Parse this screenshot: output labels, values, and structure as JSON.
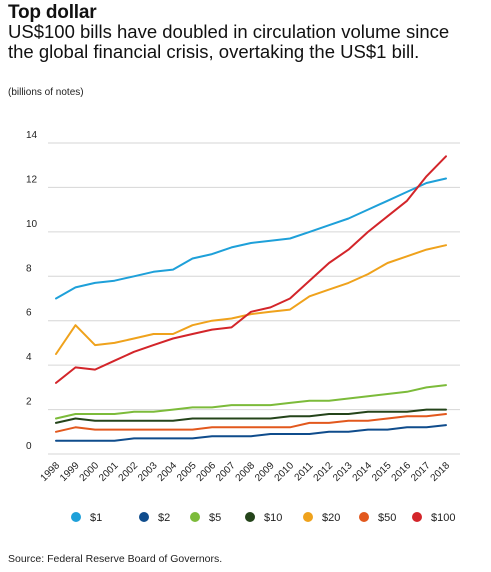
{
  "header": {
    "title": "Top dollar",
    "subtitle": "US$100 bills have doubled in circulation volume since the global financial crisis, overtaking the US$1 bill.",
    "unit": "(billions of notes)"
  },
  "source": "Source: Federal Reserve Board of Governors.",
  "chart_data": {
    "type": "line",
    "title": "Top dollar",
    "ylabel": "(billions of notes)",
    "xlabel": "",
    "ylim": [
      0,
      14
    ],
    "yticks": [
      0,
      2,
      4,
      6,
      8,
      10,
      12,
      14
    ],
    "grid": true,
    "legend_position": "bottom",
    "categories": [
      "1998",
      "1999",
      "2000",
      "2001",
      "2002",
      "2003",
      "2004",
      "2005",
      "2006",
      "2007",
      "2008",
      "2009",
      "2010",
      "2011",
      "2012",
      "2013",
      "2014",
      "2015",
      "2016",
      "2017",
      "2018"
    ],
    "series": [
      {
        "name": "$1",
        "color": "#1ea0d9",
        "values": [
          7.0,
          7.5,
          7.7,
          7.8,
          8.0,
          8.2,
          8.3,
          8.8,
          9.0,
          9.3,
          9.5,
          9.6,
          9.7,
          10.0,
          10.3,
          10.6,
          11.0,
          11.4,
          11.8,
          12.2,
          12.4
        ]
      },
      {
        "name": "$2",
        "color": "#0f4c8c",
        "values": [
          0.6,
          0.6,
          0.6,
          0.6,
          0.7,
          0.7,
          0.7,
          0.7,
          0.8,
          0.8,
          0.8,
          0.9,
          0.9,
          0.9,
          1.0,
          1.0,
          1.1,
          1.1,
          1.2,
          1.2,
          1.3
        ]
      },
      {
        "name": "$5",
        "color": "#7cbb3a",
        "values": [
          1.6,
          1.8,
          1.8,
          1.8,
          1.9,
          1.9,
          2.0,
          2.1,
          2.1,
          2.2,
          2.2,
          2.2,
          2.3,
          2.4,
          2.4,
          2.5,
          2.6,
          2.7,
          2.8,
          3.0,
          3.1
        ]
      },
      {
        "name": "$10",
        "color": "#24441a",
        "values": [
          1.4,
          1.6,
          1.5,
          1.5,
          1.5,
          1.5,
          1.5,
          1.6,
          1.6,
          1.6,
          1.6,
          1.6,
          1.7,
          1.7,
          1.8,
          1.8,
          1.9,
          1.9,
          1.9,
          2.0,
          2.0
        ]
      },
      {
        "name": "$20",
        "color": "#efa21c",
        "values": [
          4.5,
          5.8,
          4.9,
          5.0,
          5.2,
          5.4,
          5.4,
          5.8,
          6.0,
          6.1,
          6.3,
          6.4,
          6.5,
          7.1,
          7.4,
          7.7,
          8.1,
          8.6,
          8.9,
          9.2,
          9.4
        ]
      },
      {
        "name": "$50",
        "color": "#e2581d",
        "values": [
          1.0,
          1.2,
          1.1,
          1.1,
          1.1,
          1.1,
          1.1,
          1.1,
          1.2,
          1.2,
          1.2,
          1.2,
          1.2,
          1.4,
          1.4,
          1.5,
          1.5,
          1.6,
          1.7,
          1.7,
          1.8
        ]
      },
      {
        "name": "$100",
        "color": "#d3252a",
        "values": [
          3.2,
          3.9,
          3.8,
          4.2,
          4.6,
          4.9,
          5.2,
          5.4,
          5.6,
          5.7,
          6.4,
          6.6,
          7.0,
          7.8,
          8.6,
          9.2,
          10.0,
          10.7,
          11.4,
          12.5,
          13.4
        ]
      }
    ]
  }
}
